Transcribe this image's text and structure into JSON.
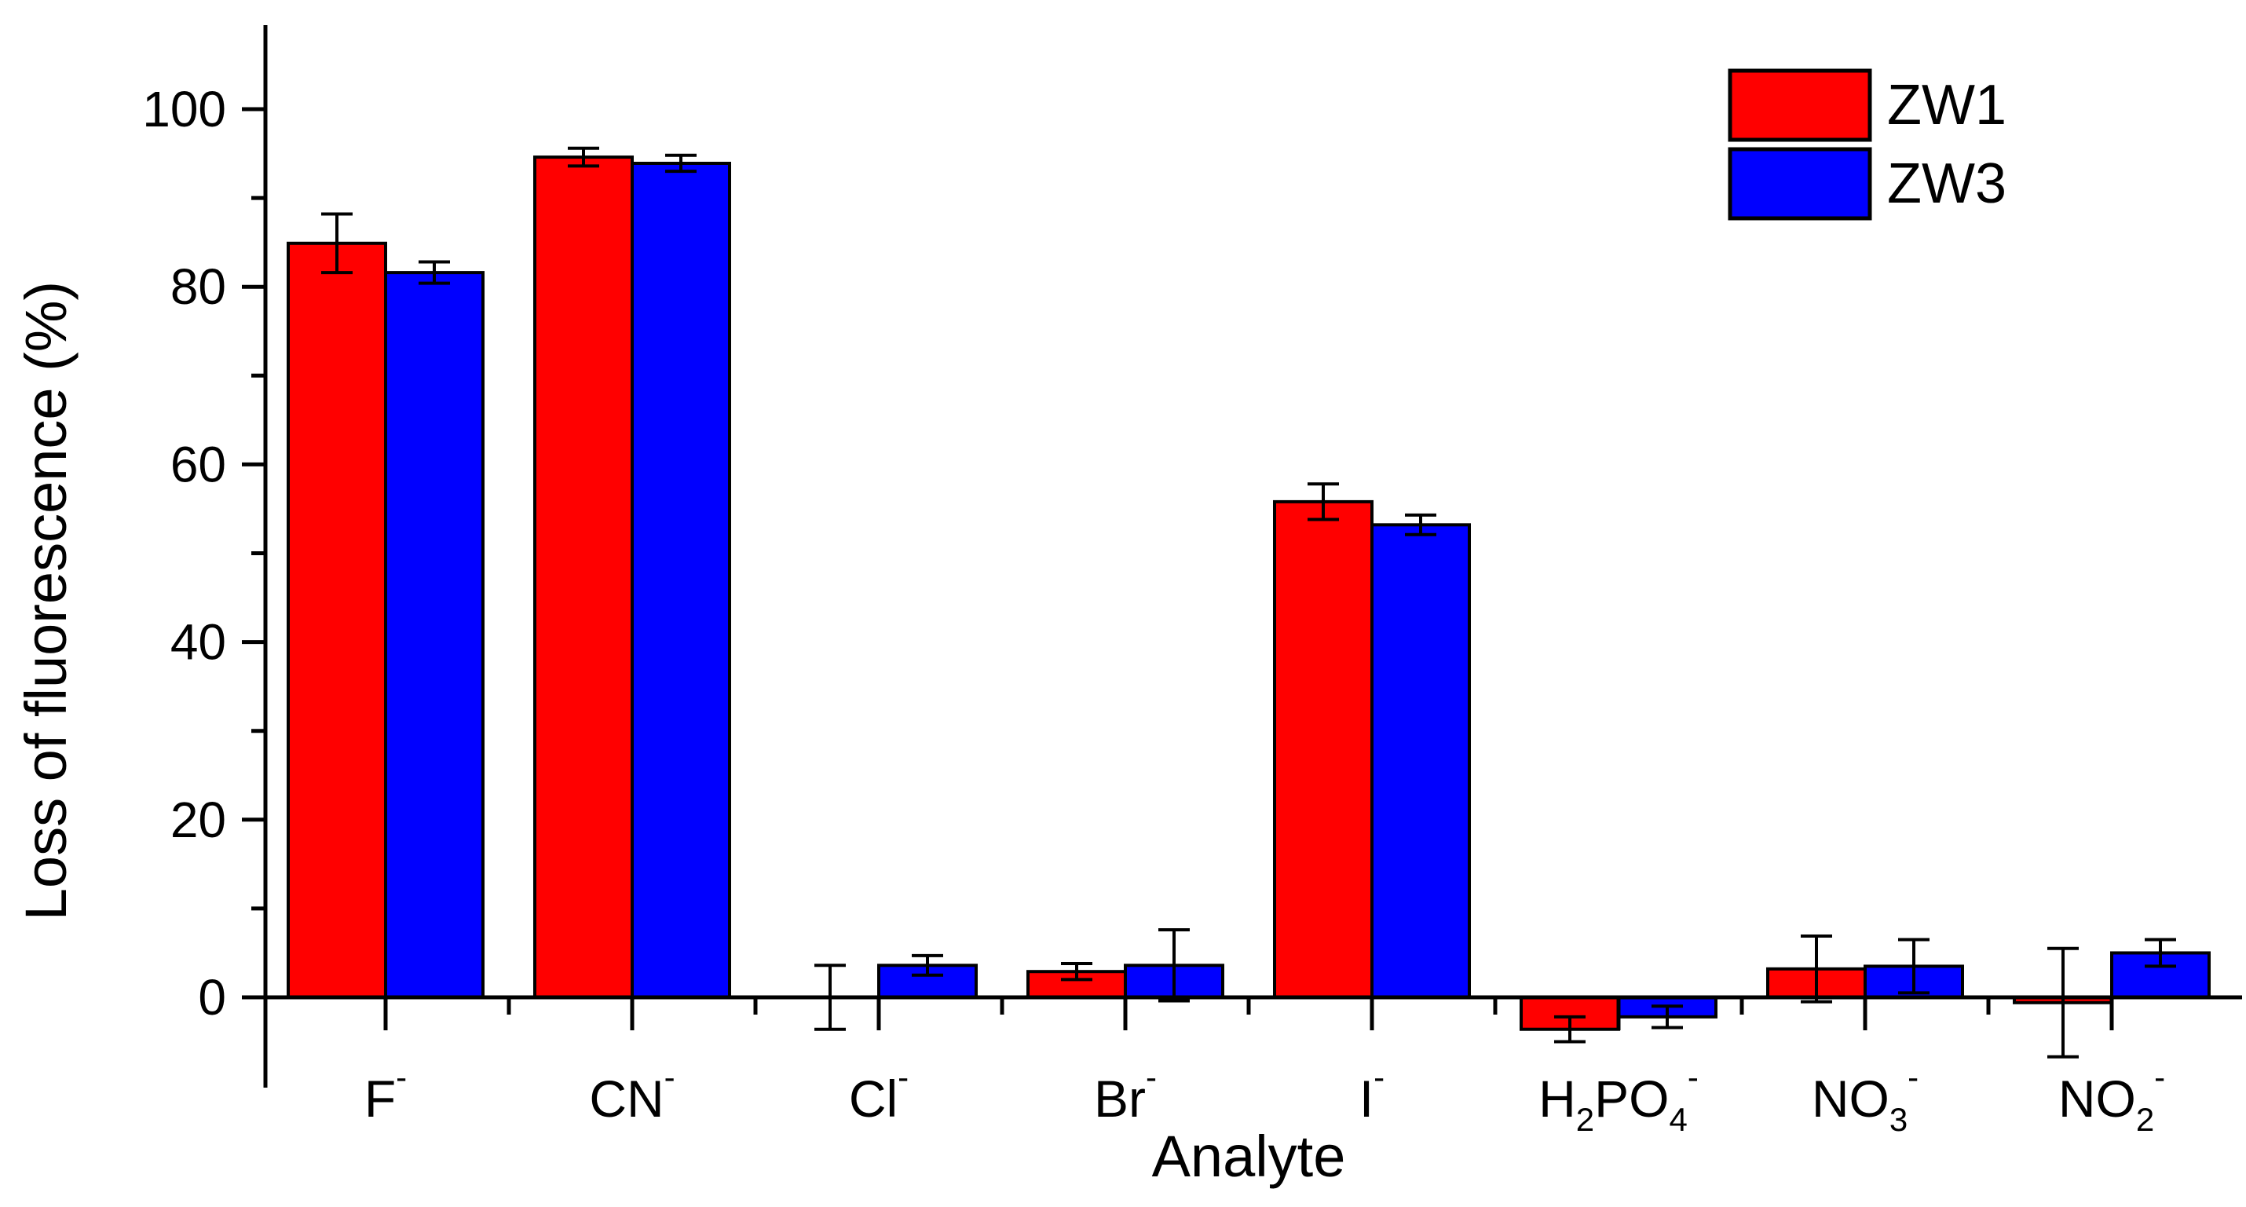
{
  "chart_data": {
    "type": "bar",
    "title": "",
    "xlabel": "Analyte",
    "ylabel": "Loss of fluorescence (%)",
    "ylim": [
      -10,
      108
    ],
    "yticks": [
      0,
      20,
      40,
      60,
      80,
      100
    ],
    "categories": [
      {
        "base": "F",
        "sub": "",
        "sup": "-"
      },
      {
        "base": "CN",
        "sub": "",
        "sup": "-"
      },
      {
        "base": "Cl",
        "sub": "",
        "sup": "-"
      },
      {
        "base": "Br",
        "sub": "",
        "sup": "-"
      },
      {
        "base": "I",
        "sub": "",
        "sup": "-"
      },
      {
        "base": "H",
        "sub": "2",
        "mid": "PO",
        "sub2": "4",
        "sup": "-"
      },
      {
        "base": "NO",
        "sub": "3",
        "sup": "-"
      },
      {
        "base": "NO",
        "sub": "2",
        "sup": "-"
      }
    ],
    "series": [
      {
        "name": "ZW1",
        "color": "#ff0000",
        "values": [
          84.9,
          94.6,
          0,
          2.9,
          55.8,
          -3.6,
          3.2,
          -0.6
        ],
        "errors": [
          3.3,
          1.0,
          3.6,
          0.9,
          2.0,
          1.4,
          3.7,
          6.1
        ]
      },
      {
        "name": "ZW3",
        "color": "#0000ff",
        "values": [
          81.6,
          93.9,
          3.6,
          3.6,
          53.2,
          -2.2,
          3.5,
          5.0
        ],
        "errors": [
          1.2,
          0.9,
          1.1,
          4.0,
          1.1,
          1.2,
          3.0,
          1.5
        ]
      }
    ],
    "legend": "top-right",
    "grid": false
  }
}
